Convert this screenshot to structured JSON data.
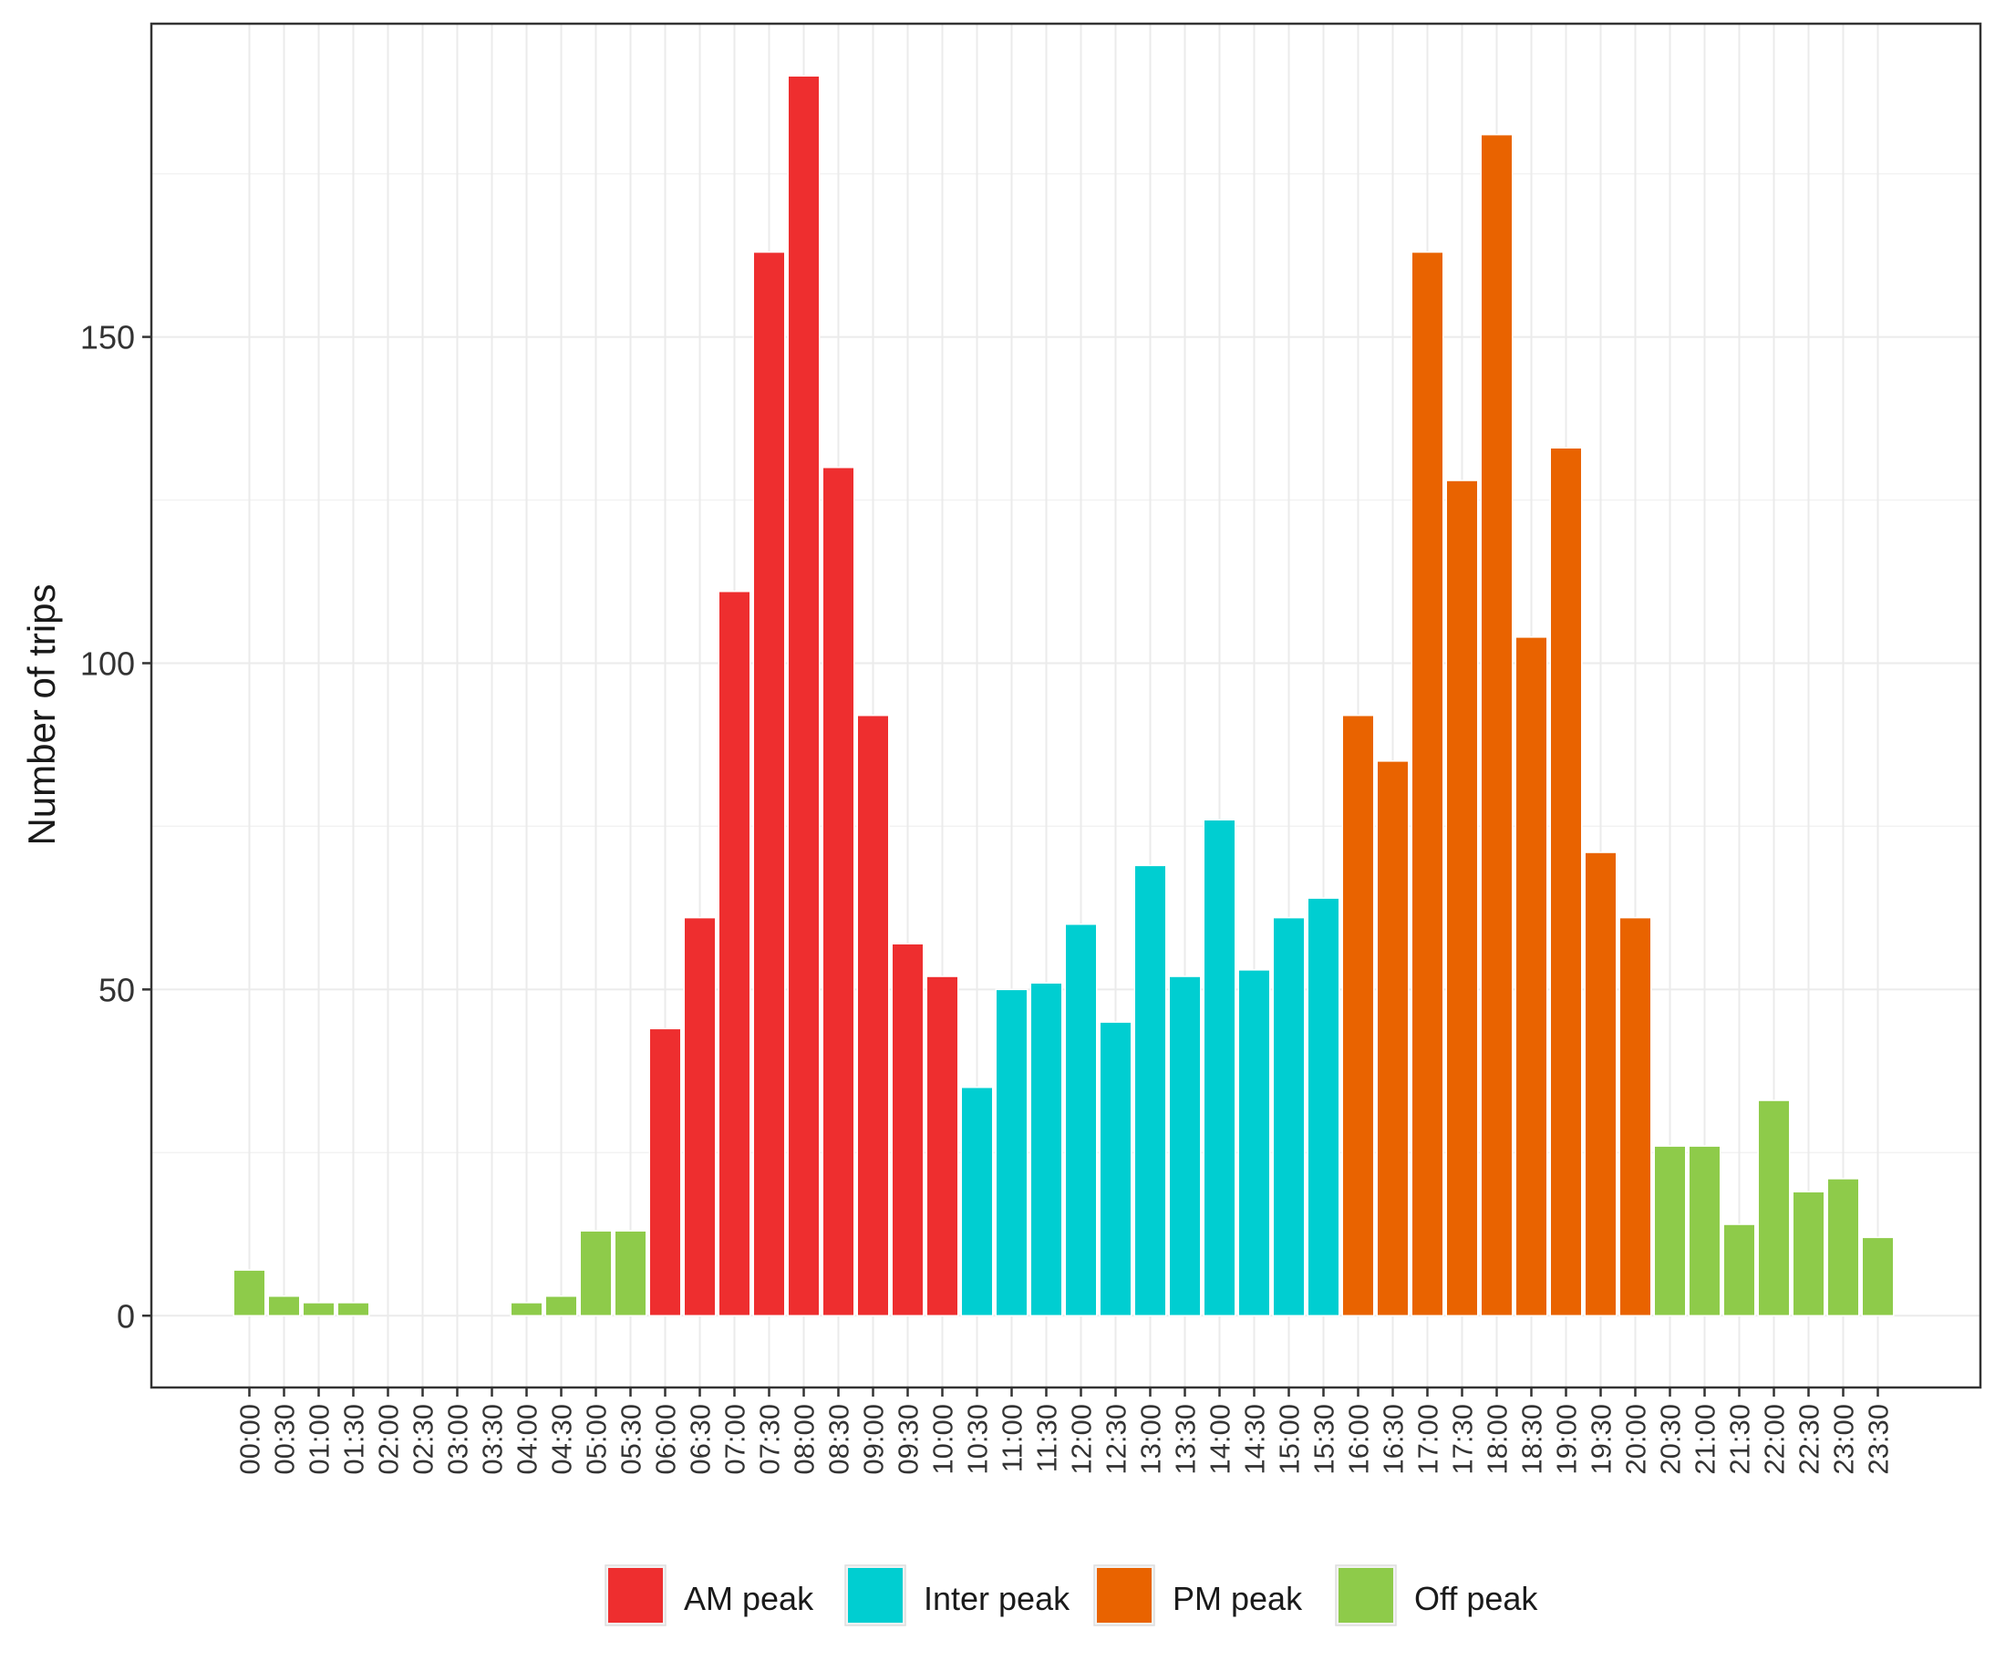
{
  "chart_data": {
    "type": "bar",
    "title": "",
    "xlabel": "",
    "ylabel": "Number of trips",
    "ylim": [
      -11,
      198
    ],
    "yticks": [
      0,
      50,
      100,
      150
    ],
    "grid": true,
    "legend_position": "bottom",
    "colors": {
      "AM peak": "#EE2E2F",
      "Inter peak": "#00CED1",
      "PM peak": "#E96300",
      "Off peak": "#8ECB4A"
    },
    "legend": [
      {
        "label": "AM peak",
        "color": "#EE2E2F"
      },
      {
        "label": "Inter peak",
        "color": "#00CED1"
      },
      {
        "label": "PM peak",
        "color": "#E96300"
      },
      {
        "label": "Off peak",
        "color": "#8ECB4A"
      }
    ],
    "categories": [
      "00:00",
      "00:30",
      "01:00",
      "01:30",
      "02:00",
      "02:30",
      "03:00",
      "03:30",
      "04:00",
      "04:30",
      "05:00",
      "05:30",
      "06:00",
      "06:30",
      "07:00",
      "07:30",
      "08:00",
      "08:30",
      "09:00",
      "09:30",
      "10:00",
      "10:30",
      "11:00",
      "11:30",
      "12:00",
      "12:30",
      "13:00",
      "13:30",
      "14:00",
      "14:30",
      "15:00",
      "15:30",
      "16:00",
      "16:30",
      "17:00",
      "17:30",
      "18:00",
      "18:30",
      "19:00",
      "19:30",
      "20:00",
      "20:30",
      "21:00",
      "21:30",
      "22:00",
      "22:30",
      "23:00",
      "23:30"
    ],
    "values": [
      7,
      3,
      2,
      2,
      0,
      0,
      0,
      0,
      2,
      3,
      13,
      13,
      44,
      61,
      111,
      163,
      190,
      130,
      92,
      57,
      52,
      35,
      50,
      51,
      60,
      45,
      69,
      52,
      76,
      53,
      61,
      64,
      92,
      85,
      163,
      128,
      181,
      104,
      133,
      71,
      61,
      26,
      26,
      14,
      33,
      19,
      21,
      12
    ],
    "groups": [
      "Off peak",
      "Off peak",
      "Off peak",
      "Off peak",
      "Off peak",
      "Off peak",
      "Off peak",
      "Off peak",
      "Off peak",
      "Off peak",
      "Off peak",
      "Off peak",
      "AM peak",
      "AM peak",
      "AM peak",
      "AM peak",
      "AM peak",
      "AM peak",
      "AM peak",
      "AM peak",
      "AM peak",
      "Inter peak",
      "Inter peak",
      "Inter peak",
      "Inter peak",
      "Inter peak",
      "Inter peak",
      "Inter peak",
      "Inter peak",
      "Inter peak",
      "Inter peak",
      "Inter peak",
      "PM peak",
      "PM peak",
      "PM peak",
      "PM peak",
      "PM peak",
      "PM peak",
      "PM peak",
      "PM peak",
      "PM peak",
      "Off peak",
      "Off peak",
      "Off peak",
      "Off peak",
      "Off peak",
      "Off peak",
      "Off peak"
    ]
  }
}
